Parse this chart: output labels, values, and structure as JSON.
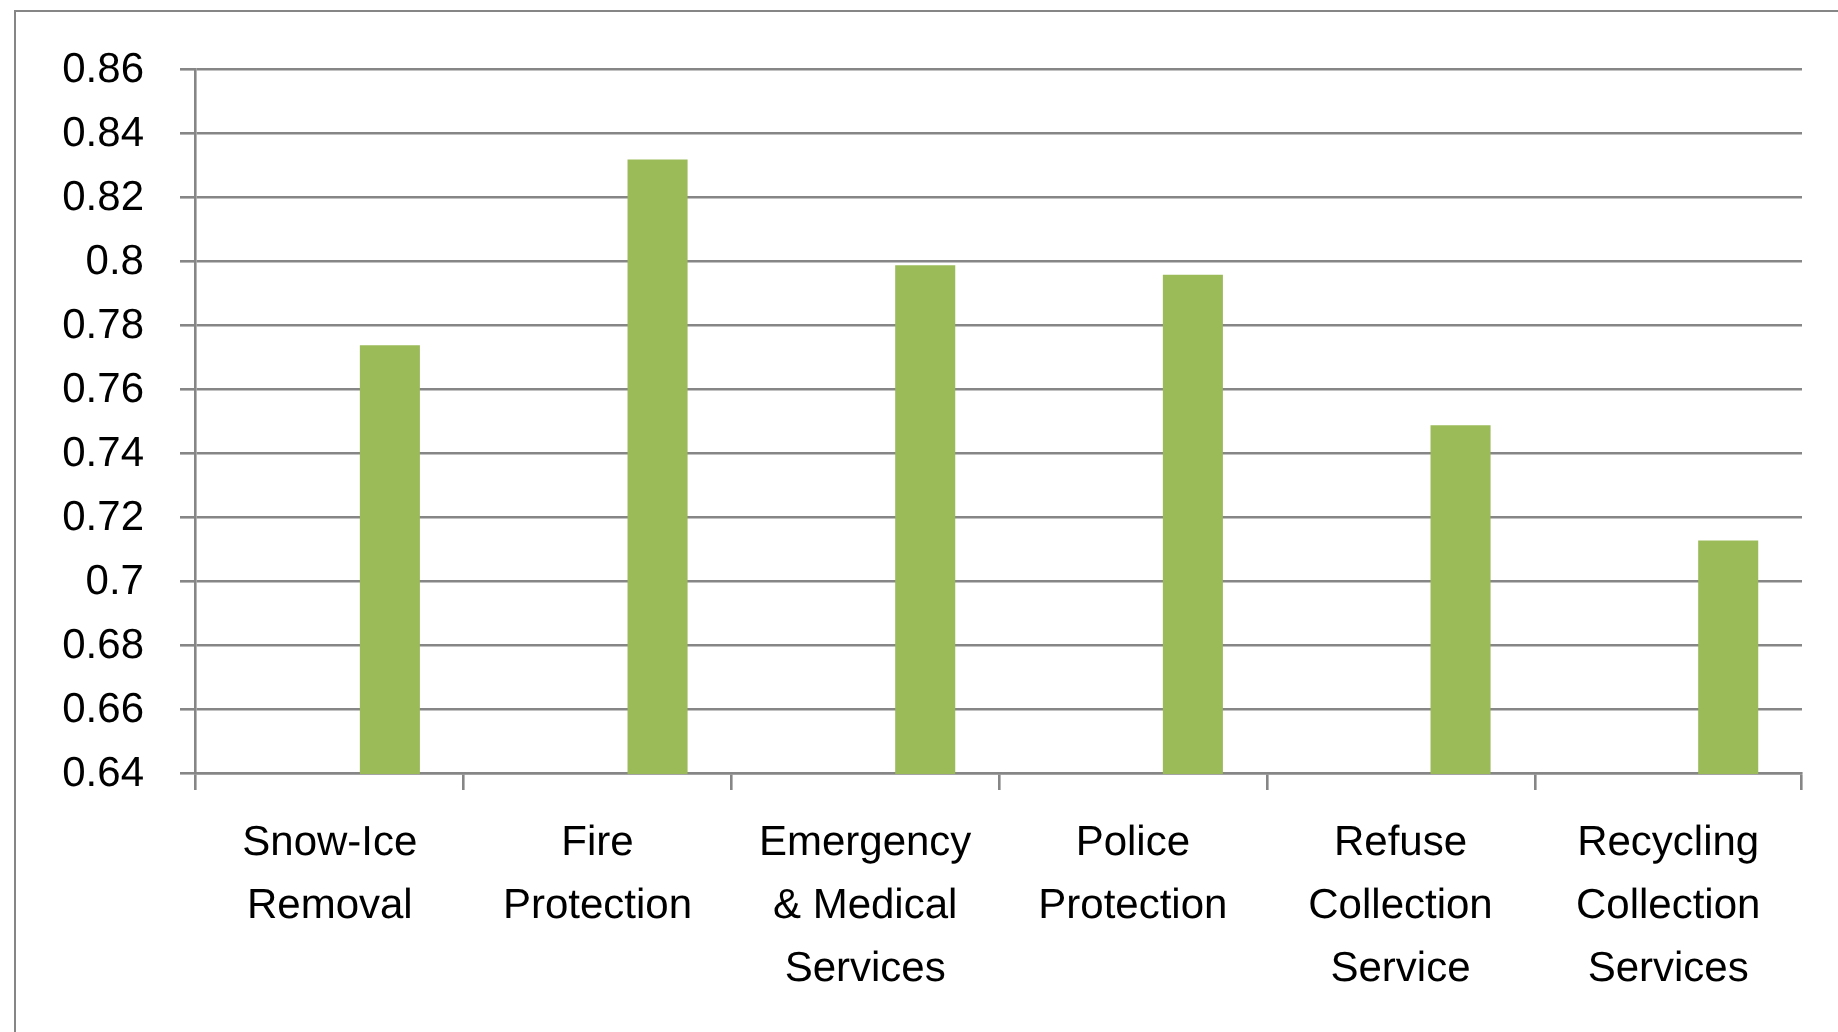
{
  "chart_data": {
    "type": "bar",
    "categories": [
      "Snow-Ice Removal",
      "Fire Protection",
      "Emergency & Medical Services",
      "Police Protection",
      "Refuse Collection Service",
      "Recycling Collection Services"
    ],
    "series": [
      {
        "values": [
          null,
          null,
          null,
          null,
          null,
          null
        ]
      },
      {
        "values": [
          null,
          null,
          null,
          null,
          null,
          null
        ]
      },
      {
        "color": "#9bbb59",
        "values": [
          0.774,
          0.832,
          0.799,
          0.796,
          0.749,
          0.713
        ]
      }
    ],
    "ylim": [
      0.64,
      0.86
    ],
    "yticks": [
      0.64,
      0.66,
      0.68,
      0.7,
      0.72,
      0.74,
      0.76,
      0.78,
      0.8,
      0.82,
      0.84,
      0.86
    ],
    "grid": "y",
    "legend": false
  }
}
